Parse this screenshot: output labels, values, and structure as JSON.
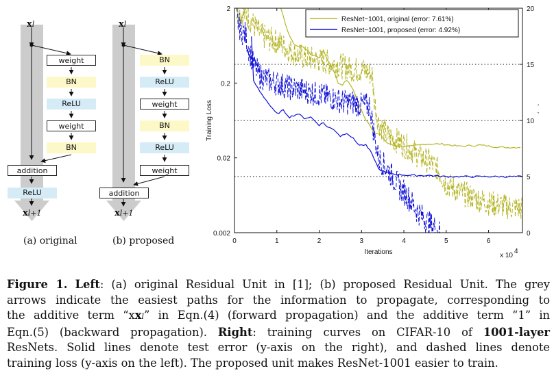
{
  "left_panel": {
    "input_label": "x",
    "input_sub": "l",
    "output_label": "x",
    "output_sub": "l+1",
    "original": {
      "caption": "(a) original",
      "blocks": [
        "weight",
        "BN",
        "ReLU",
        "weight",
        "BN"
      ],
      "addition": "addition",
      "after": "ReLU"
    },
    "proposed": {
      "caption": "(b) proposed",
      "blocks": [
        "BN",
        "ReLU",
        "weight",
        "BN",
        "ReLU",
        "weight"
      ],
      "addition": "addition"
    }
  },
  "chart_data": {
    "type": "line",
    "xlabel": "Iterations",
    "x_multiplier": "x 10",
    "x_multiplier_exp": "4",
    "ylabel_left": "Training Loss",
    "ylabel_right": "Test Error (%)",
    "xlim": [
      0,
      6.8
    ],
    "ylim_left": [
      0.002,
      2
    ],
    "ylim_left_scale": "log",
    "ylim_right": [
      0,
      20
    ],
    "x_ticks": [
      "0",
      "1",
      "2",
      "3",
      "4",
      "5",
      "6"
    ],
    "y_left_ticks": [
      "2",
      "0.2",
      "0.02",
      "0.002"
    ],
    "y_right_ticks": [
      "20",
      "15",
      "10",
      "5",
      "0"
    ],
    "hlines_right": [
      15,
      10,
      5
    ],
    "legend_position": "top-right",
    "series": [
      {
        "name": "ResNet−1001, original (error: 7.61%)",
        "color": "#b5b527",
        "test_error": [
          [
            0.45,
            27
          ],
          [
            0.9,
            23.5
          ],
          [
            1.1,
            20
          ],
          [
            1.25,
            18
          ],
          [
            1.4,
            16.8
          ],
          [
            1.55,
            16.6
          ],
          [
            1.65,
            16.5
          ],
          [
            1.8,
            15.9
          ],
          [
            2.0,
            15.6
          ],
          [
            2.1,
            16.2
          ],
          [
            2.2,
            15.4
          ],
          [
            2.35,
            14.4
          ],
          [
            2.45,
            13.3
          ],
          [
            2.55,
            13.2
          ],
          [
            2.65,
            13.6
          ],
          [
            2.8,
            12.8
          ],
          [
            2.95,
            11.3
          ],
          [
            3.1,
            10.1
          ],
          [
            3.2,
            9.6
          ],
          [
            3.3,
            8.9
          ],
          [
            3.45,
            8.7
          ],
          [
            3.6,
            8.0
          ],
          [
            3.8,
            7.7
          ],
          [
            4.2,
            7.7
          ],
          [
            4.5,
            7.9
          ],
          [
            4.9,
            7.9
          ],
          [
            5.3,
            7.7
          ],
          [
            5.8,
            7.8
          ],
          [
            6.3,
            7.6
          ],
          [
            6.75,
            7.6
          ]
        ],
        "train_loss": [
          [
            0.05,
            1.8
          ],
          [
            0.15,
            1.7
          ],
          [
            0.3,
            1.6
          ],
          [
            0.45,
            1.2
          ],
          [
            0.6,
            0.9
          ],
          [
            0.75,
            0.8
          ],
          [
            0.9,
            0.75
          ],
          [
            1.05,
            0.7
          ],
          [
            1.2,
            0.6
          ],
          [
            1.4,
            0.5
          ],
          [
            1.6,
            0.45
          ],
          [
            1.8,
            0.42
          ],
          [
            2.0,
            0.4
          ],
          [
            2.2,
            0.38
          ],
          [
            2.4,
            0.35
          ],
          [
            2.6,
            0.33
          ],
          [
            2.8,
            0.3
          ],
          [
            3.0,
            0.3
          ],
          [
            3.15,
            0.28
          ],
          [
            3.25,
            0.26
          ],
          [
            3.3,
            0.12
          ],
          [
            3.4,
            0.06
          ],
          [
            3.6,
            0.04
          ],
          [
            3.8,
            0.035
          ],
          [
            4.0,
            0.03
          ],
          [
            4.2,
            0.025
          ],
          [
            4.4,
            0.02
          ],
          [
            4.6,
            0.018
          ],
          [
            4.8,
            0.014
          ],
          [
            5.0,
            0.009
          ],
          [
            5.3,
            0.007
          ],
          [
            5.6,
            0.006
          ],
          [
            6.0,
            0.005
          ],
          [
            6.4,
            0.0045
          ],
          [
            6.8,
            0.0042
          ]
        ]
      },
      {
        "name": "ResNet−1001, proposed (error: 4.92%)",
        "color": "#1010d8",
        "test_error": [
          [
            0.4,
            17.5
          ],
          [
            0.45,
            13.5
          ],
          [
            0.6,
            12.6
          ],
          [
            0.75,
            11.8
          ],
          [
            0.9,
            11.0
          ],
          [
            1.0,
            10.6
          ],
          [
            1.15,
            10.9
          ],
          [
            1.3,
            10.3
          ],
          [
            1.5,
            10.6
          ],
          [
            1.65,
            10.2
          ],
          [
            1.8,
            10.3
          ],
          [
            2.0,
            9.6
          ],
          [
            2.1,
            9.8
          ],
          [
            2.2,
            9.4
          ],
          [
            2.35,
            9.2
          ],
          [
            2.5,
            8.6
          ],
          [
            2.65,
            8.9
          ],
          [
            2.8,
            8.4
          ],
          [
            2.95,
            7.8
          ],
          [
            3.1,
            7.8
          ],
          [
            3.2,
            7.3
          ],
          [
            3.3,
            6.6
          ],
          [
            3.4,
            5.7
          ],
          [
            3.55,
            5.4
          ],
          [
            3.8,
            5.2
          ],
          [
            4.2,
            5.1
          ],
          [
            4.6,
            5.1
          ],
          [
            5.0,
            5.0
          ],
          [
            5.5,
            5.0
          ],
          [
            6.0,
            5.0
          ],
          [
            6.5,
            5.0
          ],
          [
            6.8,
            5.0
          ]
        ],
        "train_loss": [
          [
            0.05,
            1.5
          ],
          [
            0.15,
            1.0
          ],
          [
            0.25,
            0.9
          ],
          [
            0.35,
            0.55
          ],
          [
            0.45,
            0.35
          ],
          [
            0.6,
            0.25
          ],
          [
            0.8,
            0.22
          ],
          [
            1.0,
            0.2
          ],
          [
            1.2,
            0.18
          ],
          [
            1.4,
            0.17
          ],
          [
            1.6,
            0.16
          ],
          [
            1.8,
            0.15
          ],
          [
            2.0,
            0.14
          ],
          [
            2.2,
            0.13
          ],
          [
            2.4,
            0.12
          ],
          [
            2.6,
            0.11
          ],
          [
            2.8,
            0.11
          ],
          [
            3.0,
            0.1
          ],
          [
            3.2,
            0.1
          ],
          [
            3.3,
            0.04
          ],
          [
            3.4,
            0.02
          ],
          [
            3.5,
            0.017
          ],
          [
            3.7,
            0.012
          ],
          [
            3.9,
            0.008
          ],
          [
            4.1,
            0.006
          ],
          [
            4.3,
            0.004
          ],
          [
            4.5,
            0.003
          ],
          [
            4.7,
            0.0024
          ],
          [
            4.85,
            0.002
          ]
        ]
      }
    ]
  },
  "caption": {
    "fig_label": "Figure 1.",
    "left_label": "Left",
    "part1": ": (a) original Residual Unit in [1]; (b) proposed Residual Unit. The grey",
    "line2": "arrows indicate the easiest paths for the information to propagate, corresponding to",
    "line3a": "the additive term “x",
    "line3b": "” in Eqn.(4) (forward propagation) and the additive term “1” in",
    "line4a": "Eqn.(5) (backward propagation). ",
    "right_label": "Right",
    "line4b": ": training curves on CIFAR-10 of ",
    "line4c": "1001-layer",
    "line5": "ResNets. Solid lines denote test error (y-axis on the right), and dashed lines denote",
    "line6": "training loss (y-axis on the left). The proposed unit makes ResNet-1001 easier to train."
  },
  "colors": {
    "grey_path": "#cccccc",
    "bn_fill": "#fdf8c8",
    "relu_fill": "#d5ecf7"
  }
}
